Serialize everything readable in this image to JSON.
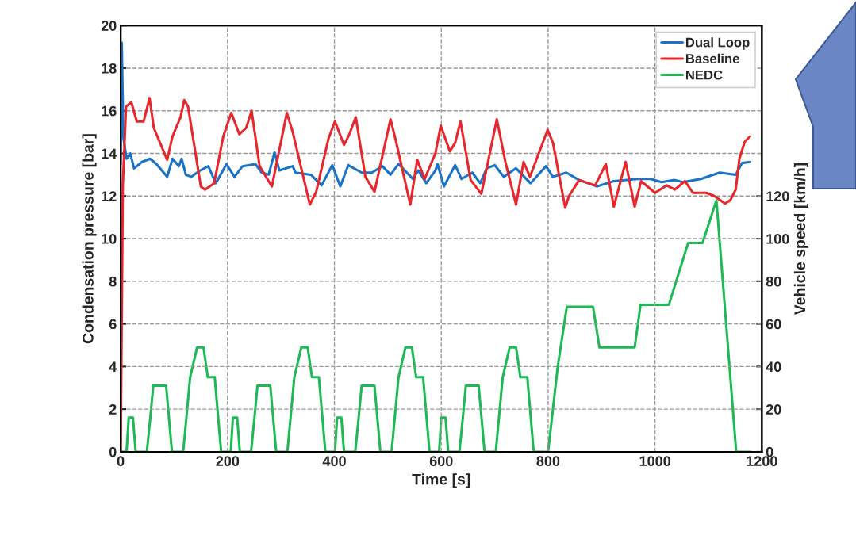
{
  "chart_data": {
    "type": "line",
    "xlabel": "Time [s]",
    "ylabel": "Condensation pressure [bar]",
    "y2label": "Vehicle speed [km/h]",
    "xlim": [
      0,
      1200
    ],
    "xticks": [
      0,
      200,
      400,
      600,
      800,
      1000,
      1200
    ],
    "ylim": [
      0,
      20
    ],
    "yticks": [
      0,
      2,
      4,
      6,
      8,
      10,
      12,
      14,
      16,
      18,
      20
    ],
    "y2lim": [
      0,
      200
    ],
    "y2ticks": [
      0,
      20,
      40,
      60,
      80,
      100,
      120
    ],
    "grid": true,
    "legend": "top right",
    "line_style": "solid",
    "marker": "none",
    "series": [
      {
        "name": "Dual Loop",
        "color": "#1a73c9",
        "x": [
          0,
          2,
          5,
          11,
          18,
          25,
          40,
          55,
          67,
          87,
          97,
          109,
          114,
          122,
          132,
          149,
          164,
          178,
          198,
          213,
          228,
          252,
          264,
          277,
          288,
          297,
          322,
          327,
          356,
          376,
          396,
          411,
          426,
          451,
          470,
          490,
          505,
          520,
          547,
          557,
          572,
          589,
          593,
          605,
          626,
          638,
          658,
          673,
          685,
          700,
          717,
          740,
          767,
          796,
          809,
          834,
          858,
          891,
          923,
          967,
          992,
          1012,
          1037,
          1052,
          1086,
          1121,
          1151,
          1163,
          1178
        ],
        "values": [
          13.5,
          19.2,
          14.75,
          13.75,
          14.0,
          13.3,
          13.6,
          13.75,
          13.5,
          12.9,
          13.75,
          13.4,
          13.75,
          13.0,
          12.9,
          13.2,
          13.4,
          12.6,
          13.5,
          12.9,
          13.4,
          13.5,
          13.1,
          13.0,
          14.05,
          13.2,
          13.4,
          13.1,
          13.0,
          12.5,
          13.45,
          12.45,
          13.45,
          13.1,
          13.1,
          13.4,
          13.0,
          13.5,
          12.8,
          13.2,
          12.6,
          13.2,
          13.5,
          12.45,
          13.45,
          12.8,
          13.1,
          12.6,
          13.3,
          13.45,
          12.9,
          13.3,
          12.6,
          13.4,
          12.9,
          13.1,
          12.75,
          12.45,
          12.7,
          12.8,
          12.8,
          12.65,
          12.75,
          12.65,
          12.8,
          13.1,
          13.0,
          13.55,
          13.6
        ]
      },
      {
        "name": "Baseline",
        "color": "#e8262b",
        "x": [
          0,
          4,
          10,
          20,
          30,
          43,
          54,
          62,
          87,
          97,
          112,
          119,
          126,
          150,
          158,
          175,
          192,
          207,
          222,
          235,
          245,
          260,
          283,
          311,
          322,
          354,
          366,
          389,
          401,
          418,
          428,
          440,
          458,
          475,
          505,
          515,
          542,
          555,
          569,
          589,
          599,
          616,
          626,
          636,
          655,
          675,
          704,
          720,
          740,
          754,
          766,
          799,
          809,
          832,
          839,
          858,
          888,
          908,
          923,
          945,
          962,
          974,
          1000,
          1022,
          1037,
          1056,
          1071,
          1096,
          1111,
          1131,
          1141,
          1151,
          1158,
          1168,
          1178
        ],
        "values": [
          0,
          12.5,
          16.2,
          16.4,
          15.5,
          15.5,
          16.6,
          15.2,
          13.7,
          14.8,
          15.7,
          16.5,
          16.2,
          12.45,
          12.3,
          12.6,
          14.8,
          15.9,
          14.9,
          15.2,
          16.0,
          13.4,
          12.45,
          15.9,
          15.0,
          11.6,
          12.2,
          14.7,
          15.5,
          14.4,
          14.9,
          15.7,
          12.9,
          12.2,
          15.6,
          14.6,
          11.6,
          13.7,
          12.8,
          14.0,
          15.3,
          14.1,
          14.5,
          15.5,
          12.75,
          12.1,
          15.6,
          13.6,
          11.6,
          13.6,
          12.9,
          15.1,
          14.5,
          11.45,
          12.0,
          12.75,
          12.5,
          13.5,
          11.5,
          13.6,
          11.5,
          12.7,
          12.15,
          12.5,
          12.3,
          12.7,
          12.15,
          12.15,
          12.0,
          11.65,
          11.8,
          12.3,
          13.75,
          14.55,
          14.8
        ]
      },
      {
        "name": "NEDC",
        "color": "#1db954",
        "axis": "y2",
        "x": [
          0,
          11,
          15,
          23,
          28,
          49,
          55,
          61,
          85,
          96,
          117,
          130,
          143,
          155,
          163,
          176,
          188,
          195,
          206,
          210,
          218,
          223,
          244,
          250,
          256,
          280,
          291,
          312,
          325,
          338,
          350,
          358,
          371,
          383,
          390,
          401,
          405,
          413,
          418,
          439,
          445,
          451,
          475,
          486,
          507,
          520,
          533,
          545,
          553,
          566,
          578,
          585,
          596,
          600,
          608,
          613,
          634,
          640,
          646,
          670,
          681,
          702,
          715,
          728,
          740,
          748,
          761,
          773,
          780,
          800,
          818,
          835,
          884,
          896,
          962,
          973,
          1026,
          1062,
          1089,
          1115,
          1152,
          1180
        ],
        "values": [
          0,
          0,
          16,
          16,
          0,
          0,
          15,
          31,
          31,
          0,
          0,
          35,
          49,
          49,
          35,
          35,
          0,
          0,
          0,
          16,
          16,
          0,
          0,
          15,
          31,
          31,
          0,
          0,
          35,
          49,
          49,
          35,
          35,
          0,
          0,
          0,
          16,
          16,
          0,
          0,
          15,
          31,
          31,
          0,
          0,
          35,
          49,
          49,
          35,
          35,
          0,
          0,
          0,
          16,
          16,
          0,
          0,
          15,
          31,
          31,
          0,
          0,
          35,
          49,
          49,
          35,
          35,
          0,
          0,
          0,
          40,
          68,
          68,
          49,
          49,
          69,
          69,
          98,
          98,
          118,
          0,
          0
        ]
      }
    ]
  }
}
